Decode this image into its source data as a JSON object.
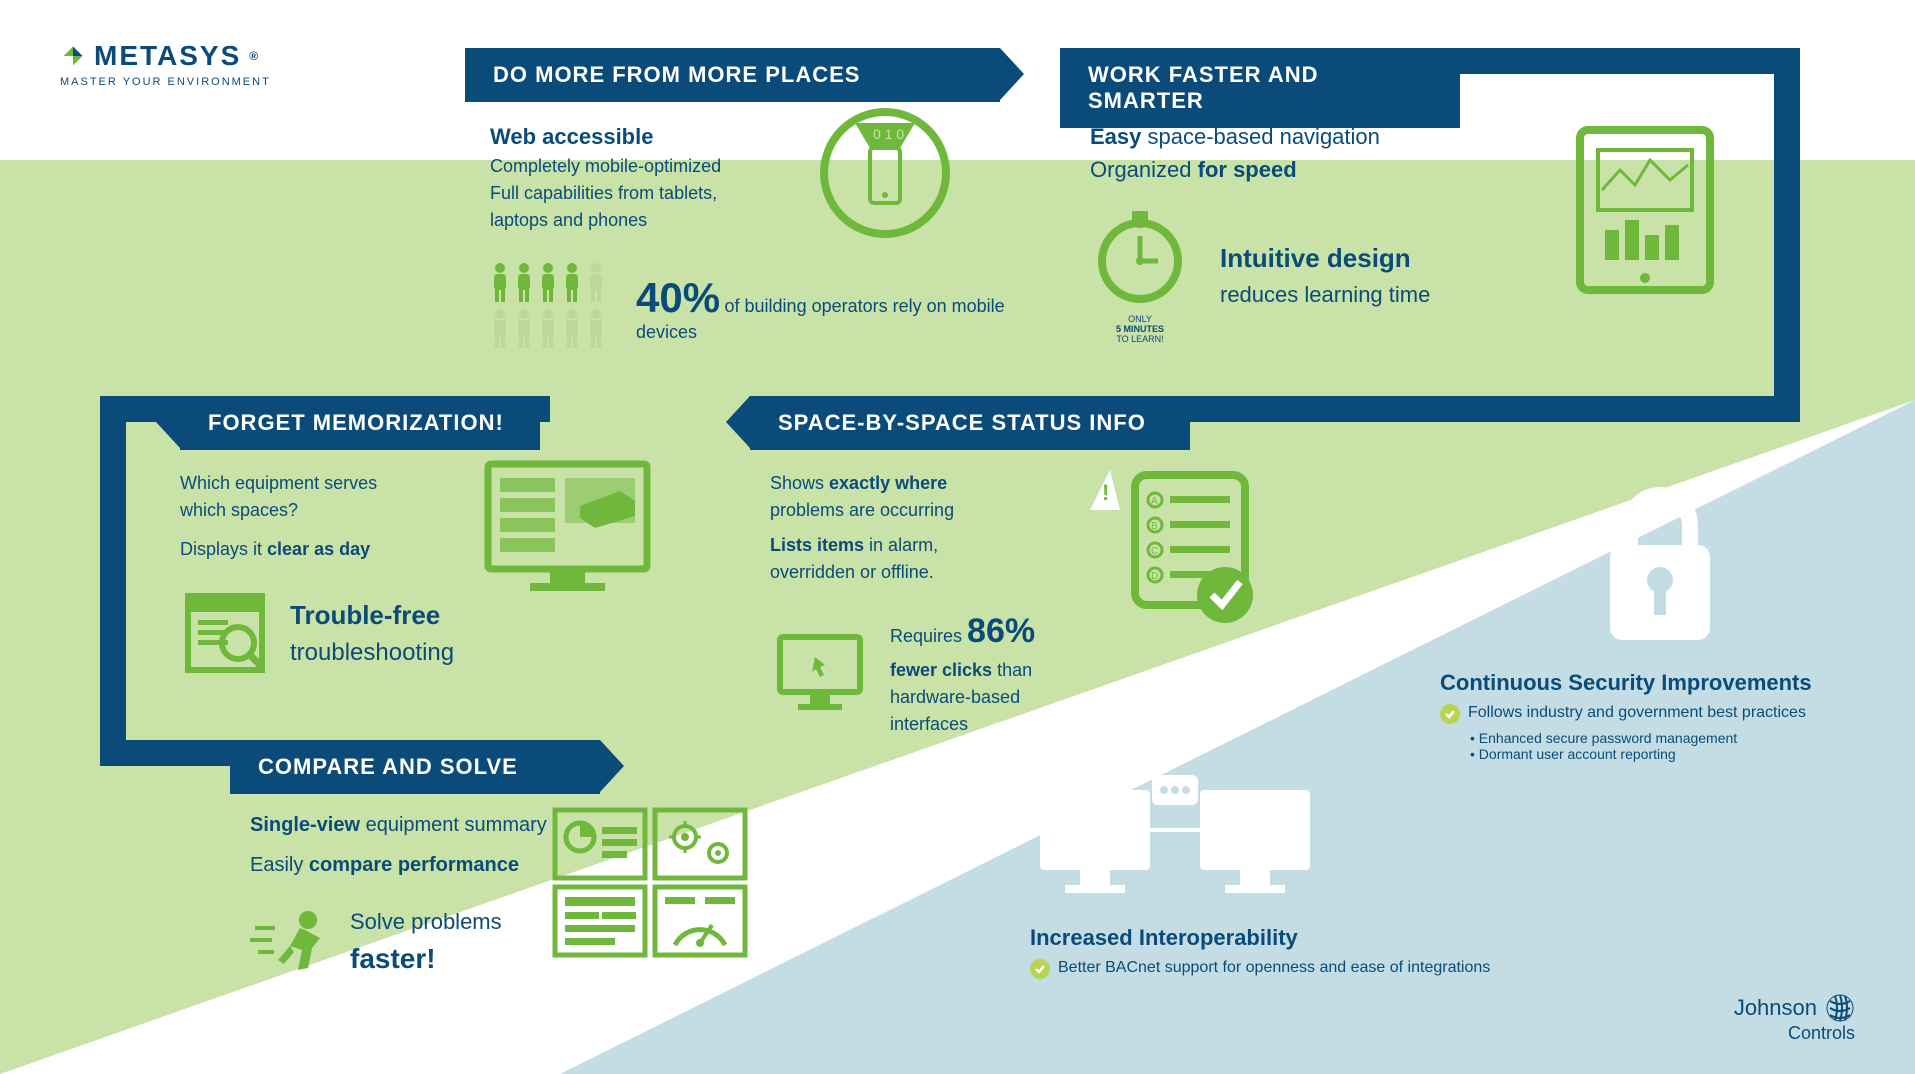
{
  "colors": {
    "navy": "#0a4b7a",
    "green": "#6fb83c",
    "green_light": "#c9e2a8",
    "blue_light": "#c4dde4",
    "white": "#ffffff",
    "check_bg": "#b8d450",
    "people_dim": "#bdd79a"
  },
  "logo": {
    "brand": "METASYS",
    "registered": "®",
    "tagline": "MASTER YOUR ENVIRONMENT"
  },
  "banners": {
    "do_more": "DO MORE FROM MORE PLACES",
    "work_faster": "WORK FASTER AND SMARTER",
    "space_status": "SPACE-BY-SPACE STATUS INFO",
    "forget_mem": "FORGET MEMORIZATION!",
    "compare_solve": "COMPARE AND SOLVE"
  },
  "do_more": {
    "heading": "Web accessible",
    "line1": "Completely mobile-optimized",
    "line2": "Full capabilities from tablets, laptops and phones",
    "stat_pct": "40%",
    "stat_text": "of building operators rely on mobile devices",
    "people_highlight": 4,
    "people_total": 10
  },
  "work_faster": {
    "line1_a": "Easy",
    "line1_b": " space-based navigation",
    "line2_a": "Organized ",
    "line2_b": "for speed",
    "timer_l1": "ONLY",
    "timer_l2": "5 MINUTES",
    "timer_l3": "TO LEARN!",
    "sub_heading": "Intuitive design",
    "sub_text": "reduces learning time"
  },
  "space_status": {
    "l1_a": "Shows ",
    "l1_b": "exactly where",
    "l1_c": " problems are occurring",
    "l2_a": "Lists items",
    "l2_b": " in alarm, overridden or offline.",
    "req_a": "Requires ",
    "req_pct": "86%",
    "req_b": "fewer clicks",
    "req_c": " than hardware-based interfaces"
  },
  "forget_mem": {
    "l1": "Which equipment serves which spaces?",
    "l2_a": "Displays it ",
    "l2_b": "clear as day",
    "sub_heading": "Trouble-free",
    "sub_text": "troubleshooting"
  },
  "compare_solve": {
    "l1_a": "Single-view",
    "l1_b": " equipment summary",
    "l2_a": "Easily ",
    "l2_b": "compare performance",
    "sub_a": "Solve problems ",
    "sub_b": "faster!"
  },
  "security": {
    "heading": "Continuous Security Improvements",
    "bullet": "Follows industry and government best practices",
    "sub1": "Enhanced secure password management",
    "sub2": "Dormant user account reporting"
  },
  "interop": {
    "heading": "Increased Interoperability",
    "bullet": "Better BACnet support for openness and ease of integrations"
  },
  "footer": {
    "brand": "Johnson",
    "sub": "Controls"
  }
}
